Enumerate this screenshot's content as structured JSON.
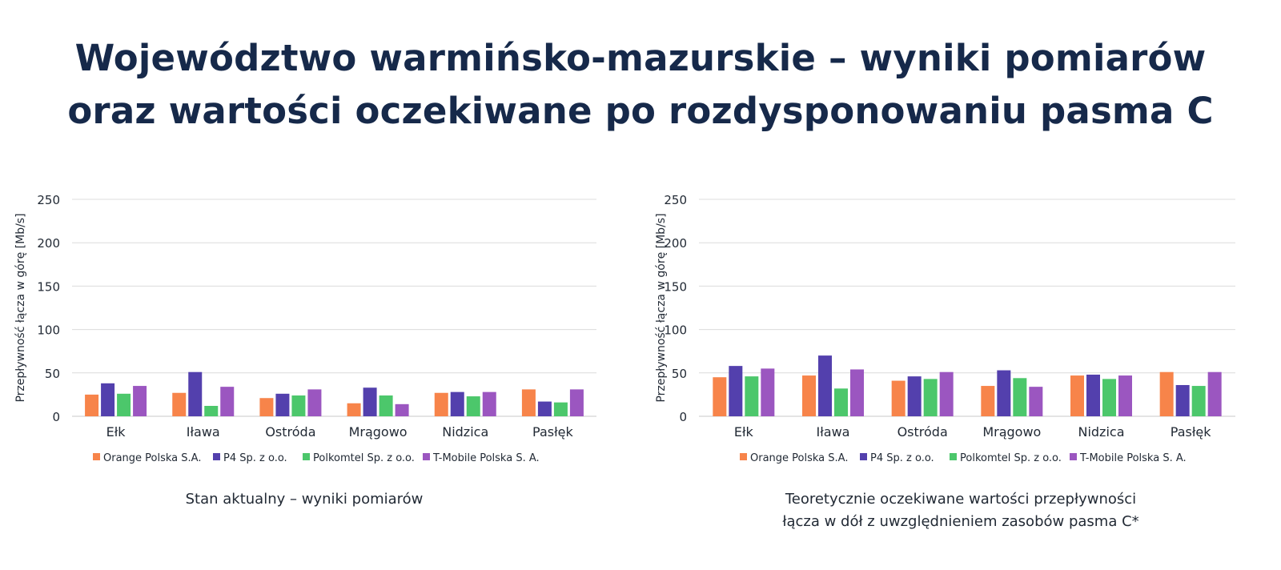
{
  "title_lines": [
    "Województwo warmińsko-mazurskie – wyniki pomiarów",
    "oraz wartości oczekiwane po rozdysponowaniu pasma C"
  ],
  "colors": {
    "Orange Polska S.A.": "#f7844a",
    "P4 Sp. z o.o.": "#5340ad",
    "Polkomtel Sp. z o.o.": "#4cc76b",
    "T-Mobile Polska S. A.": "#9b56c0"
  },
  "chart_data": [
    {
      "type": "bar",
      "ylabel": "Przepływność łącza w górę [Mb/s]",
      "ylim": [
        0,
        250
      ],
      "yticks": [
        0,
        50,
        100,
        150,
        200,
        250
      ],
      "grid": true,
      "legend_position": "bottom",
      "categories": [
        "Ełk",
        "Iława",
        "Ostróda",
        "Mrągowo",
        "Nidzica",
        "Pasłęk"
      ],
      "series": [
        {
          "name": "Orange Polska S.A.",
          "values": [
            25,
            27,
            21,
            15,
            27,
            31
          ]
        },
        {
          "name": "P4 Sp. z o.o.",
          "values": [
            38,
            51,
            26,
            33,
            28,
            17
          ]
        },
        {
          "name": "Polkomtel Sp. z o.o.",
          "values": [
            26,
            12,
            24,
            24,
            23,
            16
          ]
        },
        {
          "name": "T-Mobile Polska S. A.",
          "values": [
            35,
            34,
            31,
            14,
            28,
            31
          ]
        }
      ],
      "caption_lines": [
        "Stan aktualny – wyniki pomiarów"
      ]
    },
    {
      "type": "bar",
      "ylabel": "Przepływność  łącza w górę [Mb/s]",
      "ylim": [
        0,
        250
      ],
      "yticks": [
        0,
        50,
        100,
        150,
        200,
        250
      ],
      "grid": true,
      "legend_position": "bottom",
      "categories": [
        "Ełk",
        "Iława",
        "Ostróda",
        "Mrągowo",
        "Nidzica",
        "Pasłęk"
      ],
      "series": [
        {
          "name": "Orange Polska S.A.",
          "values": [
            45,
            47,
            41,
            35,
            47,
            51
          ]
        },
        {
          "name": "P4 Sp. z o.o.",
          "values": [
            58,
            70,
            46,
            53,
            48,
            36
          ]
        },
        {
          "name": "Polkomtel Sp. z o.o.",
          "values": [
            46,
            32,
            43,
            44,
            43,
            35
          ]
        },
        {
          "name": "T-Mobile Polska S. A.",
          "values": [
            55,
            54,
            51,
            34,
            47,
            51
          ]
        }
      ],
      "caption_lines": [
        "Teoretycznie oczekiwane wartości przepływności",
        "łącza w dół z uwzględnieniem zasobów pasma C*"
      ]
    }
  ]
}
